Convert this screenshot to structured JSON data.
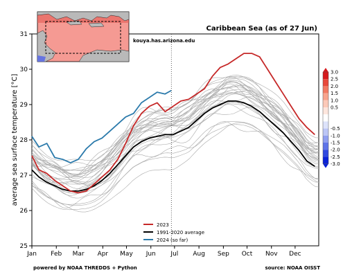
{
  "chart_data": {
    "type": "line",
    "title": "Caribbean Sea (as of 27 Jun)",
    "ylabel": "average sea surface temperature [°C]",
    "xlabel": "",
    "months": [
      "Jan",
      "Feb",
      "Mar",
      "Apr",
      "May",
      "Jun",
      "Jul",
      "Aug",
      "Sep",
      "Oct",
      "Nov",
      "Dec"
    ],
    "ylim": [
      25,
      31
    ],
    "yticks": [
      25,
      26,
      27,
      28,
      29,
      30,
      31
    ],
    "today_marker_day": 178,
    "watermark": "kouya.has.arizona.edu",
    "footer_left": "powered by NOAA THREDDS + Python",
    "footer_right": "source: NOAA OISST",
    "anomaly_colorbar": {
      "ticks": [
        "3.0",
        "2.5",
        "2.0",
        "1.5",
        "1.0",
        "0.5",
        "-0.5",
        "-1.0",
        "-1.5",
        "-2.0",
        "-2.5",
        "-3.0"
      ],
      "colors_positive": [
        "#d7191c",
        "#e8483a",
        "#f27a62",
        "#f8a48d",
        "#fcc9b8",
        "#fde6dd"
      ],
      "colors_negative": [
        "#dde3fb",
        "#bcc6f6",
        "#909ff0",
        "#5f74e8",
        "#3149e0",
        "#0a22d8"
      ]
    },
    "legend": [
      "2023",
      "1991-2020 average",
      "2024 (so far)"
    ],
    "series": [
      {
        "name": "2023",
        "color": "#c62828",
        "x": [
          1,
          10,
          20,
          30,
          40,
          50,
          60,
          70,
          80,
          90,
          100,
          110,
          120,
          130,
          140,
          150,
          160,
          170,
          180,
          190,
          200,
          210,
          220,
          230,
          240,
          250,
          260,
          270,
          280,
          290,
          300,
          310,
          320,
          330,
          340,
          350,
          360
        ],
        "values": [
          27.55,
          27.15,
          27.05,
          26.85,
          26.7,
          26.55,
          26.5,
          26.55,
          26.75,
          26.95,
          27.15,
          27.45,
          27.9,
          28.4,
          28.75,
          28.95,
          29.05,
          28.8,
          28.95,
          29.1,
          29.15,
          29.3,
          29.45,
          29.8,
          30.05,
          30.15,
          30.3,
          30.45,
          30.45,
          30.35,
          30.0,
          29.65,
          29.3,
          28.95,
          28.6,
          28.35,
          28.15
        ]
      },
      {
        "name": "1991-2020 average",
        "color": "#000000",
        "x": [
          1,
          10,
          20,
          30,
          40,
          50,
          60,
          70,
          80,
          90,
          100,
          110,
          120,
          130,
          140,
          150,
          160,
          170,
          180,
          190,
          200,
          210,
          220,
          230,
          240,
          250,
          260,
          270,
          280,
          290,
          300,
          310,
          320,
          330,
          340,
          350,
          360
        ],
        "values": [
          27.15,
          26.95,
          26.8,
          26.7,
          26.6,
          26.55,
          26.55,
          26.6,
          26.7,
          26.85,
          27.05,
          27.3,
          27.55,
          27.8,
          27.95,
          28.05,
          28.1,
          28.15,
          28.15,
          28.25,
          28.35,
          28.55,
          28.75,
          28.9,
          29.0,
          29.1,
          29.1,
          29.05,
          28.95,
          28.8,
          28.6,
          28.4,
          28.2,
          27.95,
          27.7,
          27.4,
          27.25
        ]
      },
      {
        "name": "2024 (so far)",
        "color": "#2b7aab",
        "x": [
          1,
          10,
          20,
          30,
          40,
          50,
          60,
          70,
          80,
          90,
          100,
          110,
          120,
          130,
          140,
          150,
          160,
          170,
          178
        ],
        "values": [
          28.1,
          27.8,
          27.9,
          27.5,
          27.45,
          27.35,
          27.45,
          27.75,
          27.95,
          28.05,
          28.25,
          28.45,
          28.65,
          28.75,
          29.05,
          29.2,
          29.35,
          29.3,
          29.4
        ]
      }
    ]
  }
}
